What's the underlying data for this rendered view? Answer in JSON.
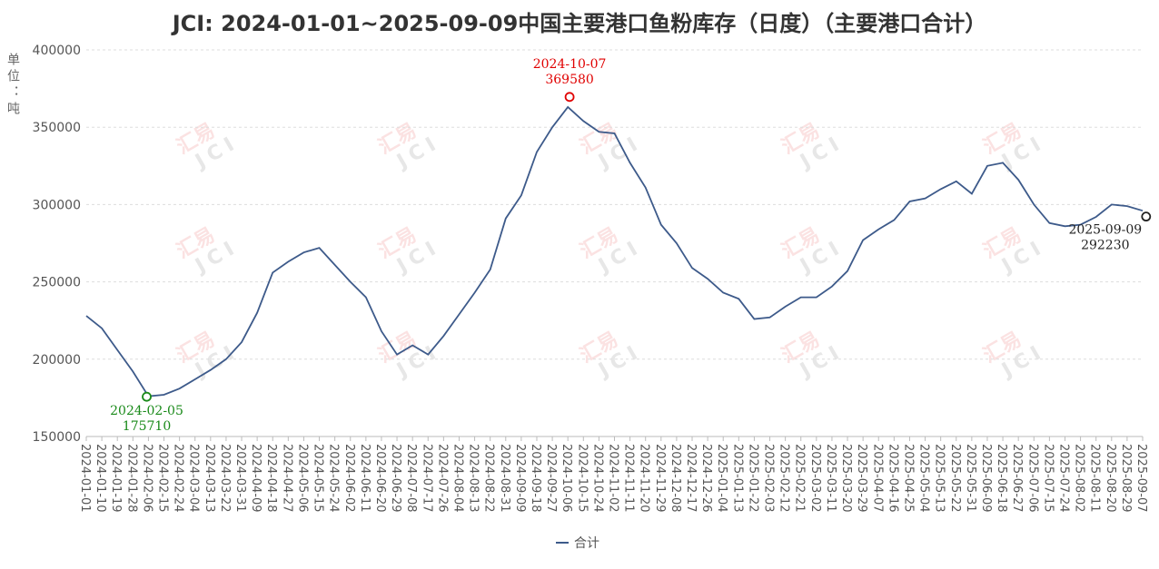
{
  "chart_data": {
    "type": "line",
    "title": "JCI: 2024-01-01~2025-09-09中国主要港口鱼粉库存（日度）（主要港口合计）",
    "y_label": "单位：吨",
    "watermark": [
      "汇易",
      "JCI"
    ],
    "x": [
      "2024-01-01",
      "2024-01-10",
      "2024-01-19",
      "2024-01-28",
      "2024-02-06",
      "2024-02-15",
      "2024-02-24",
      "2024-03-04",
      "2024-03-13",
      "2024-03-22",
      "2024-03-31",
      "2024-04-09",
      "2024-04-18",
      "2024-04-27",
      "2024-05-06",
      "2024-05-15",
      "2024-05-24",
      "2024-06-02",
      "2024-06-11",
      "2024-06-20",
      "2024-06-29",
      "2024-07-08",
      "2024-07-17",
      "2024-07-26",
      "2024-08-04",
      "2024-08-13",
      "2024-08-22",
      "2024-08-31",
      "2024-09-09",
      "2024-09-18",
      "2024-09-27",
      "2024-10-06",
      "2024-10-15",
      "2024-10-24",
      "2024-11-02",
      "2024-11-11",
      "2024-11-20",
      "2024-11-29",
      "2024-12-08",
      "2024-12-17",
      "2024-12-26",
      "2025-01-04",
      "2025-01-13",
      "2025-01-22",
      "2025-02-03",
      "2025-02-12",
      "2025-02-21",
      "2025-03-02",
      "2025-03-11",
      "2025-03-20",
      "2025-03-29",
      "2025-04-07",
      "2025-04-16",
      "2025-04-25",
      "2025-05-04",
      "2025-05-13",
      "2025-05-22",
      "2025-05-31",
      "2025-06-09",
      "2025-06-18",
      "2025-06-27",
      "2025-07-06",
      "2025-07-15",
      "2025-07-24",
      "2025-08-02",
      "2025-08-11",
      "2025-08-20",
      "2025-08-29",
      "2025-09-07"
    ],
    "series": [
      {
        "name": "合计",
        "color": "#3d5a8a",
        "values": [
          228000,
          220000,
          206000,
          192000,
          176000,
          177000,
          181000,
          187000,
          193000,
          200000,
          211000,
          230000,
          256000,
          263000,
          269000,
          272000,
          261000,
          250000,
          240000,
          218000,
          203000,
          209000,
          203000,
          215000,
          229000,
          243000,
          258000,
          291000,
          306000,
          334000,
          350000,
          363000,
          354000,
          347000,
          346000,
          327000,
          311000,
          287000,
          275000,
          259000,
          252000,
          243000,
          239000,
          226000,
          227000,
          234000,
          240000,
          240000,
          247000,
          257000,
          277000,
          284000,
          290000,
          302000,
          304000,
          310000,
          315000,
          307000,
          325000,
          327000,
          316000,
          300000,
          288000,
          286000,
          287000,
          292000,
          300000,
          299000,
          296000
        ]
      }
    ],
    "annotations": [
      {
        "x": "2024-02-05",
        "value": 175710,
        "color": "#1a8a1a"
      },
      {
        "x": "2024-10-07",
        "value": 369580,
        "color": "#e00000"
      },
      {
        "x": "2025-09-09",
        "value": 292230,
        "color": "#222222"
      }
    ],
    "ylim": [
      150000,
      400000
    ],
    "yticks": [
      150000,
      200000,
      250000,
      300000,
      350000,
      400000
    ],
    "grid": true,
    "legend": "bottom"
  }
}
